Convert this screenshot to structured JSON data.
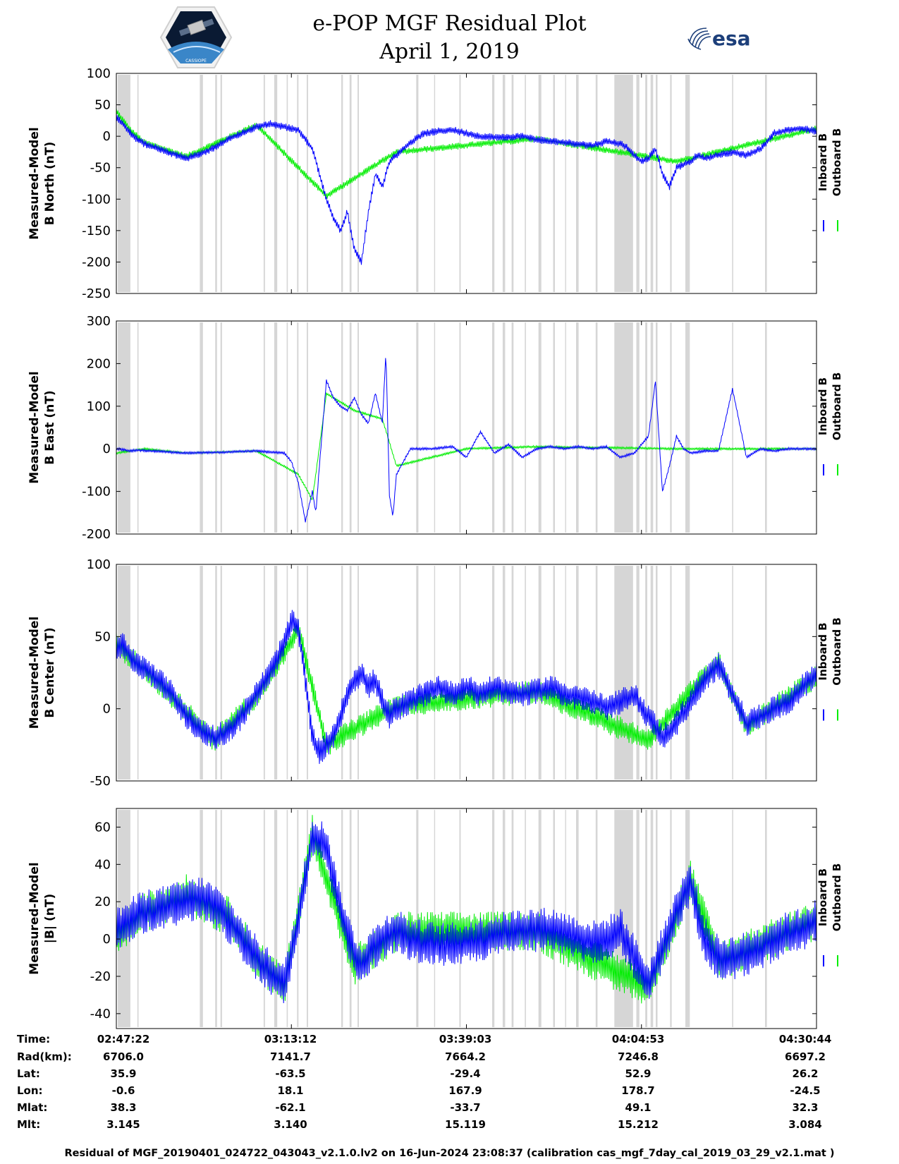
{
  "header": {
    "title_line1": "e-POP MGF Residual Plot",
    "title_line2": "April 1, 2019",
    "logo_left_text": "CASSIOPE",
    "logo_right_text": "esa"
  },
  "colors": {
    "inboard": "#0000ff",
    "outboard": "#00ee00",
    "gap": "#d6d6d6",
    "axis": "#000000"
  },
  "legend": {
    "inboard": "Inboard B",
    "outboard": "Outboard B"
  },
  "chart_data": [
    {
      "type": "line",
      "ylabel": [
        "Measured-Model",
        "B North (nT)"
      ],
      "ylim": [
        -250,
        100
      ],
      "yticks": [
        100,
        50,
        0,
        -50,
        -100,
        -150,
        -200,
        -250
      ],
      "noise": 6,
      "series": [
        {
          "name": "Inboard B",
          "x": [
            0,
            1,
            2,
            3,
            4,
            6,
            8,
            10,
            12,
            14,
            16,
            18,
            20,
            22,
            24,
            26,
            28,
            29,
            30,
            31,
            32,
            33,
            34,
            35,
            36,
            37,
            38,
            39,
            40,
            42,
            44,
            46,
            48,
            50,
            52,
            55,
            58,
            60,
            62,
            64,
            66,
            68,
            70,
            72,
            73,
            74,
            75,
            76,
            77,
            78,
            79,
            80,
            81,
            82,
            83,
            84,
            86,
            88,
            90,
            92,
            94,
            96,
            98,
            100
          ],
          "y": [
            30,
            20,
            5,
            -5,
            -12,
            -20,
            -28,
            -35,
            -28,
            -18,
            -5,
            5,
            15,
            20,
            15,
            10,
            -20,
            -60,
            -100,
            -130,
            -150,
            -120,
            -180,
            -200,
            -120,
            -60,
            -80,
            -40,
            -30,
            -10,
            5,
            8,
            10,
            5,
            0,
            -2,
            0,
            -5,
            -8,
            -10,
            -12,
            -15,
            -8,
            -12,
            -18,
            -30,
            -40,
            -35,
            -20,
            -60,
            -80,
            -50,
            -45,
            -40,
            -30,
            -35,
            -30,
            -25,
            -30,
            -20,
            5,
            10,
            12,
            8
          ]
        },
        {
          "name": "Outboard B",
          "x": [
            0,
            2,
            4,
            10,
            20,
            30,
            40,
            60,
            80,
            100
          ],
          "y": [
            40,
            10,
            -10,
            -32,
            18,
            -95,
            -25,
            -4,
            -40,
            12
          ]
        }
      ]
    },
    {
      "type": "line",
      "ylabel": [
        "Measured-Model",
        "B East (nT)"
      ],
      "ylim": [
        -200,
        300
      ],
      "yticks": [
        300,
        200,
        100,
        0,
        -100,
        -200
      ],
      "noise": 3,
      "series": [
        {
          "name": "Inboard B",
          "x": [
            0,
            1,
            2,
            3,
            4,
            5,
            10,
            15,
            20,
            22,
            24,
            25,
            26,
            27,
            28,
            28.5,
            29,
            30,
            31,
            32,
            33,
            34,
            35,
            36,
            37,
            38,
            38.5,
            39,
            39.5,
            40,
            42,
            45,
            48,
            50,
            52,
            54,
            56,
            58,
            60,
            62,
            64,
            66,
            68,
            70,
            72,
            74,
            76,
            77,
            78,
            79,
            80,
            81,
            82,
            84,
            86,
            88,
            90,
            92,
            94,
            96,
            98,
            100
          ],
          "y": [
            0,
            -2,
            -5,
            -3,
            -4,
            -5,
            -10,
            -8,
            -5,
            -8,
            -10,
            -30,
            -80,
            -170,
            -100,
            -150,
            -40,
            160,
            120,
            100,
            90,
            120,
            80,
            60,
            130,
            60,
            230,
            -110,
            -160,
            -60,
            0,
            0,
            5,
            -20,
            40,
            -10,
            10,
            -20,
            0,
            5,
            0,
            5,
            0,
            5,
            -20,
            -10,
            30,
            160,
            -100,
            -40,
            30,
            0,
            -10,
            -5,
            -5,
            140,
            -20,
            0,
            -5,
            0,
            0,
            0
          ]
        },
        {
          "name": "Outboard B",
          "x": [
            0,
            2,
            4,
            10,
            20,
            26,
            28,
            30,
            34,
            38,
            40,
            50,
            60,
            80,
            100
          ],
          "y": [
            -10,
            -5,
            0,
            -10,
            -5,
            -60,
            -120,
            130,
            90,
            70,
            -40,
            0,
            5,
            0,
            0
          ]
        }
      ]
    },
    {
      "type": "line",
      "ylabel": [
        "Measured-Model",
        "B Center (nT)"
      ],
      "ylim": [
        -50,
        100
      ],
      "yticks": [
        100,
        50,
        0,
        -50
      ],
      "noise": 9,
      "series": [
        {
          "name": "Inboard B",
          "x": [
            0,
            1,
            2,
            3,
            4,
            5,
            6,
            8,
            10,
            12,
            14,
            16,
            18,
            20,
            22,
            24,
            25,
            26,
            27,
            28,
            29,
            30,
            31,
            32,
            33,
            34,
            35,
            36,
            37,
            38,
            39,
            40,
            42,
            44,
            46,
            48,
            50,
            52,
            54,
            56,
            58,
            60,
            62,
            64,
            66,
            68,
            70,
            72,
            74,
            75,
            76,
            78,
            80,
            82,
            84,
            86,
            88,
            90,
            92,
            94,
            96,
            98,
            100
          ],
          "y": [
            40,
            45,
            35,
            30,
            28,
            25,
            20,
            10,
            -5,
            -15,
            -20,
            -15,
            -5,
            10,
            25,
            45,
            60,
            55,
            20,
            -20,
            -30,
            -25,
            -20,
            -5,
            10,
            20,
            25,
            15,
            20,
            5,
            -5,
            0,
            5,
            10,
            15,
            10,
            15,
            10,
            15,
            12,
            10,
            12,
            15,
            10,
            8,
            5,
            0,
            5,
            10,
            0,
            -5,
            -20,
            -10,
            5,
            20,
            30,
            10,
            -10,
            -5,
            0,
            5,
            15,
            25
          ]
        },
        {
          "name": "Outboard B",
          "x": [
            0,
            2,
            4,
            8,
            14,
            20,
            26,
            30,
            40,
            60,
            76,
            82,
            86,
            90,
            100
          ],
          "y": [
            45,
            35,
            28,
            8,
            -22,
            8,
            55,
            -25,
            2,
            12,
            -22,
            12,
            32,
            -12,
            22
          ]
        }
      ]
    },
    {
      "type": "line",
      "ylabel": [
        "Measured-Model",
        "|B| (nT)"
      ],
      "ylim": [
        -48,
        70
      ],
      "yticks": [
        60,
        40,
        20,
        0,
        -20,
        -40
      ],
      "noise": 12,
      "series": [
        {
          "name": "Inboard B",
          "x": [
            0,
            2,
            4,
            6,
            8,
            10,
            12,
            14,
            16,
            18,
            20,
            22,
            24,
            26,
            28,
            30,
            32,
            34,
            35,
            36,
            38,
            40,
            42,
            44,
            46,
            48,
            50,
            52,
            54,
            56,
            58,
            60,
            62,
            64,
            66,
            68,
            70,
            72,
            74,
            76,
            78,
            80,
            82,
            84,
            86,
            88,
            90,
            92,
            94,
            96,
            98,
            100
          ],
          "y": [
            5,
            10,
            15,
            16,
            18,
            20,
            22,
            18,
            10,
            0,
            -10,
            -18,
            -25,
            10,
            55,
            50,
            15,
            -8,
            -15,
            -8,
            0,
            5,
            0,
            -2,
            -3,
            -3,
            -2,
            0,
            2,
            3,
            5,
            5,
            5,
            3,
            0,
            -2,
            0,
            5,
            -10,
            -25,
            -5,
            15,
            30,
            0,
            -10,
            -10,
            -8,
            -5,
            0,
            3,
            5,
            10
          ]
        },
        {
          "name": "Outboard B",
          "x": [
            0,
            4,
            10,
            16,
            20,
            24,
            28,
            34,
            40,
            60,
            76,
            82,
            86,
            100
          ],
          "y": [
            2,
            14,
            24,
            12,
            -10,
            -26,
            56,
            -14,
            4,
            4,
            -26,
            32,
            -12,
            10
          ]
        }
      ]
    }
  ],
  "time_axis": {
    "labels": [
      "02:47:22",
      "03:13:12",
      "03:39:03",
      "04:04:53",
      "04:30:44"
    ]
  },
  "orbit_table": {
    "row_labels": [
      "Time:",
      "Rad(km):",
      "Lat:",
      "Lon:",
      "Mlat:",
      "Mlt:"
    ],
    "columns": [
      {
        "time": "02:47:22",
        "rad": "6706.0",
        "lat": "35.9",
        "lon": "-0.6",
        "mlat": "38.3",
        "mlt": "3.145"
      },
      {
        "time": "03:13:12",
        "rad": "7141.7",
        "lat": "-63.5",
        "lon": "18.1",
        "mlat": "-62.1",
        "mlt": "3.140"
      },
      {
        "time": "03:39:03",
        "rad": "7664.2",
        "lat": "-29.4",
        "lon": "167.9",
        "mlat": "-33.7",
        "mlt": "15.119"
      },
      {
        "time": "04:04:53",
        "rad": "7246.8",
        "lat": "52.9",
        "lon": "178.7",
        "mlat": "49.1",
        "mlt": "15.212"
      },
      {
        "time": "04:30:44",
        "rad": "6697.2",
        "lat": "26.2",
        "lon": "-24.5",
        "mlat": "32.3",
        "mlt": "3.084"
      }
    ]
  },
  "footer": "Residual of MGF_20190401_024722_043043_v2.1.0.lv2 on 16-Jun-2024 23:08:37 (calibration cas_mgf_7day_cal_2019_03_29_v2.1.mat )"
}
